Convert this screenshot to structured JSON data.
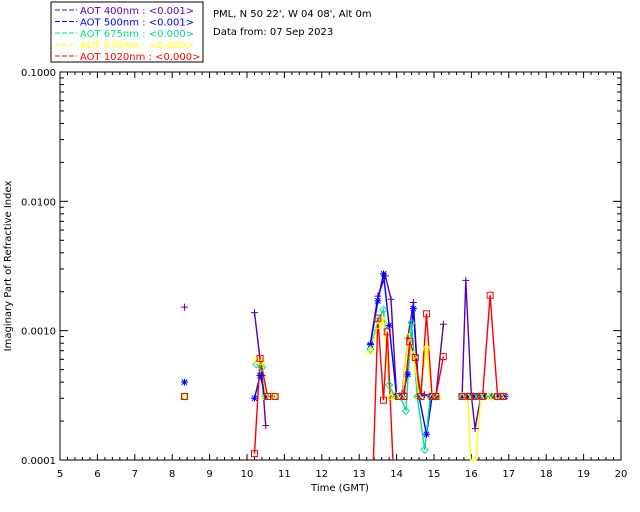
{
  "chart_data": {
    "type": "line",
    "yscale": "log",
    "xlabel": "Time (GMT)",
    "ylabel": "Imaginary Part of Refractive Index",
    "xlim": [
      5,
      20
    ],
    "ylim": [
      0.0001,
      0.1
    ],
    "x_ticks": [
      "5",
      "6",
      "7",
      "8",
      "9",
      "10",
      "11",
      "12",
      "13",
      "14",
      "15",
      "16",
      "17",
      "18",
      "19",
      "20"
    ],
    "y_ticks": [
      {
        "value": 0.0001,
        "label": "0.0001"
      },
      {
        "value": 0.001,
        "label": "0.0010"
      },
      {
        "value": 0.01,
        "label": "0.0100"
      },
      {
        "value": 0.1,
        "label": "0.1000"
      }
    ],
    "info": {
      "site": "PML, N 50 22', W 04 08', Alt 0m",
      "date": "Data from: 07 Sep 2023"
    },
    "series": [
      {
        "name": "AOT  400nm : <0.001>",
        "color": "#5a00b4",
        "marker": "plus",
        "segments": [
          [
            [
              8.33,
              0.00152
            ]
          ],
          [
            [
              10.2,
              0.00138
            ],
            [
              10.4,
              0.00045
            ],
            [
              10.5,
              0.000185
            ]
          ],
          [
            [
              13.3,
              0.00079
            ],
            [
              13.5,
              0.00185
            ],
            [
              13.7,
              0.00265
            ],
            [
              13.85,
              0.00175
            ],
            [
              14.0,
              0.00031
            ],
            [
              14.15,
              0.00033
            ],
            [
              14.3,
              0.00088
            ],
            [
              14.45,
              0.00165
            ],
            [
              14.6,
              0.00031
            ],
            [
              14.75,
              0.00032
            ],
            [
              14.9,
              0.00031
            ],
            [
              15.05,
              0.00031
            ],
            [
              15.25,
              0.00112
            ]
          ],
          [
            [
              15.75,
              0.00031
            ],
            [
              15.85,
              0.00245
            ],
            [
              16.0,
              0.00031
            ],
            [
              16.1,
              0.000175
            ],
            [
              16.25,
              0.00031
            ],
            [
              16.4,
              0.00031
            ],
            [
              16.55,
              0.00031
            ],
            [
              16.7,
              0.00031
            ],
            [
              16.9,
              0.00031
            ]
          ]
        ]
      },
      {
        "name": "AOT  500nm : <0.001>",
        "color": "#0000ff",
        "marker": "star",
        "segments": [
          [
            [
              8.33,
              0.0004
            ]
          ],
          [
            [
              10.2,
              0.0003
            ],
            [
              10.35,
              0.00045
            ],
            [
              10.5,
              0.00031
            ]
          ],
          [
            [
              13.3,
              0.00078
            ],
            [
              13.5,
              0.0017
            ],
            [
              13.65,
              0.00275
            ],
            [
              13.8,
              0.0011
            ],
            [
              14.0,
              0.00031
            ],
            [
              14.15,
              0.00031
            ],
            [
              14.3,
              0.00046
            ],
            [
              14.45,
              0.00148
            ],
            [
              14.6,
              0.00031
            ],
            [
              14.8,
              0.000158
            ],
            [
              14.95,
              0.00031
            ],
            [
              15.05,
              0.00031
            ]
          ],
          [
            [
              15.75,
              0.00031
            ],
            [
              15.9,
              0.00031
            ],
            [
              16.05,
              0.00031
            ],
            [
              16.2,
              0.00031
            ],
            [
              16.35,
              0.00031
            ],
            [
              16.55,
              0.00031
            ],
            [
              16.75,
              0.00031
            ],
            [
              16.9,
              0.00031
            ]
          ]
        ]
      },
      {
        "name": "AOT  675nm : <0.000>",
        "color": "#00e08c",
        "marker": "diamond",
        "segments": [
          [
            [
              8.33,
              0.00031
            ]
          ],
          [
            [
              10.25,
              0.00055
            ],
            [
              10.4,
              0.00052
            ],
            [
              10.5,
              0.00031
            ],
            [
              10.75,
              0.00031
            ]
          ],
          [
            [
              13.3,
              0.00072
            ],
            [
              13.5,
              0.0012
            ],
            [
              13.65,
              0.00145
            ],
            [
              13.8,
              0.00038
            ],
            [
              13.95,
              0.00031
            ],
            [
              14.1,
              0.00031
            ],
            [
              14.25,
              0.00024
            ],
            [
              14.4,
              0.00115
            ],
            [
              14.55,
              0.00031
            ],
            [
              14.75,
              0.00012
            ],
            [
              14.9,
              0.00031
            ],
            [
              15.05,
              0.00031
            ]
          ],
          [
            [
              15.75,
              0.00031
            ],
            [
              15.9,
              0.00031
            ],
            [
              16.05,
              0.00031
            ],
            [
              16.2,
              0.00031
            ],
            [
              16.35,
              0.00031
            ],
            [
              16.55,
              0.00031
            ],
            [
              16.7,
              0.00031
            ],
            [
              16.85,
              0.00031
            ]
          ]
        ]
      },
      {
        "name": "AOT  870nm : <0.000>",
        "color": "#ffff00",
        "marker": "triangle",
        "segments": [
          [
            [
              8.33,
              0.00031
            ]
          ],
          [
            [
              10.25,
              0.0006
            ],
            [
              10.4,
              0.00058
            ],
            [
              10.5,
              0.00031
            ],
            [
              10.75,
              0.00031
            ]
          ],
          [
            [
              13.3,
              0.0007
            ],
            [
              13.5,
              0.0011
            ],
            [
              13.65,
              0.0012
            ],
            [
              13.85,
              0.00031
            ],
            [
              14.0,
              0.00031
            ],
            [
              14.15,
              0.00031
            ],
            [
              14.3,
              0.0009
            ],
            [
              14.45,
              0.00065
            ],
            [
              14.6,
              0.00031
            ],
            [
              14.8,
              0.00075
            ],
            [
              14.95,
              0.00031
            ],
            [
              15.1,
              0.00031
            ]
          ],
          [
            [
              15.75,
              0.00031
            ],
            [
              15.9,
              0.00031
            ],
            [
              15.98,
              0.0001
            ],
            [
              16.12,
              0.0001
            ],
            [
              16.25,
              0.00031
            ],
            [
              16.45,
              0.00031
            ],
            [
              16.6,
              0.00031
            ],
            [
              16.8,
              0.00031
            ]
          ]
        ]
      },
      {
        "name": "AOT 1020nm : <0.000>",
        "color": "#ff0000",
        "marker": "square",
        "segments": [
          [
            [
              8.33,
              0.00031
            ]
          ],
          [
            [
              10.2,
              0.000112
            ],
            [
              10.35,
              0.00061
            ],
            [
              10.55,
              0.00031
            ],
            [
              10.75,
              0.00031
            ]
          ],
          [
            [
              13.38,
              0.0001
            ],
            [
              13.5,
              0.00125
            ],
            [
              13.65,
              0.00029
            ],
            [
              13.75,
              0.00098
            ],
            [
              13.9,
              0.0001
            ]
          ],
          [
            [
              14.05,
              0.00031
            ],
            [
              14.2,
              0.00031
            ],
            [
              14.35,
              0.00082
            ],
            [
              14.5,
              0.00062
            ],
            [
              14.65,
              0.00031
            ],
            [
              14.8,
              0.00135
            ],
            [
              14.95,
              0.00031
            ],
            [
              15.05,
              0.00031
            ],
            [
              15.25,
              0.00063
            ]
          ],
          [
            [
              15.75,
              0.00031
            ],
            [
              15.95,
              0.00031
            ],
            [
              16.1,
              0.00031
            ],
            [
              16.3,
              0.00031
            ],
            [
              16.5,
              0.00188
            ],
            [
              16.7,
              0.00031
            ],
            [
              16.85,
              0.00031
            ]
          ]
        ]
      }
    ]
  }
}
